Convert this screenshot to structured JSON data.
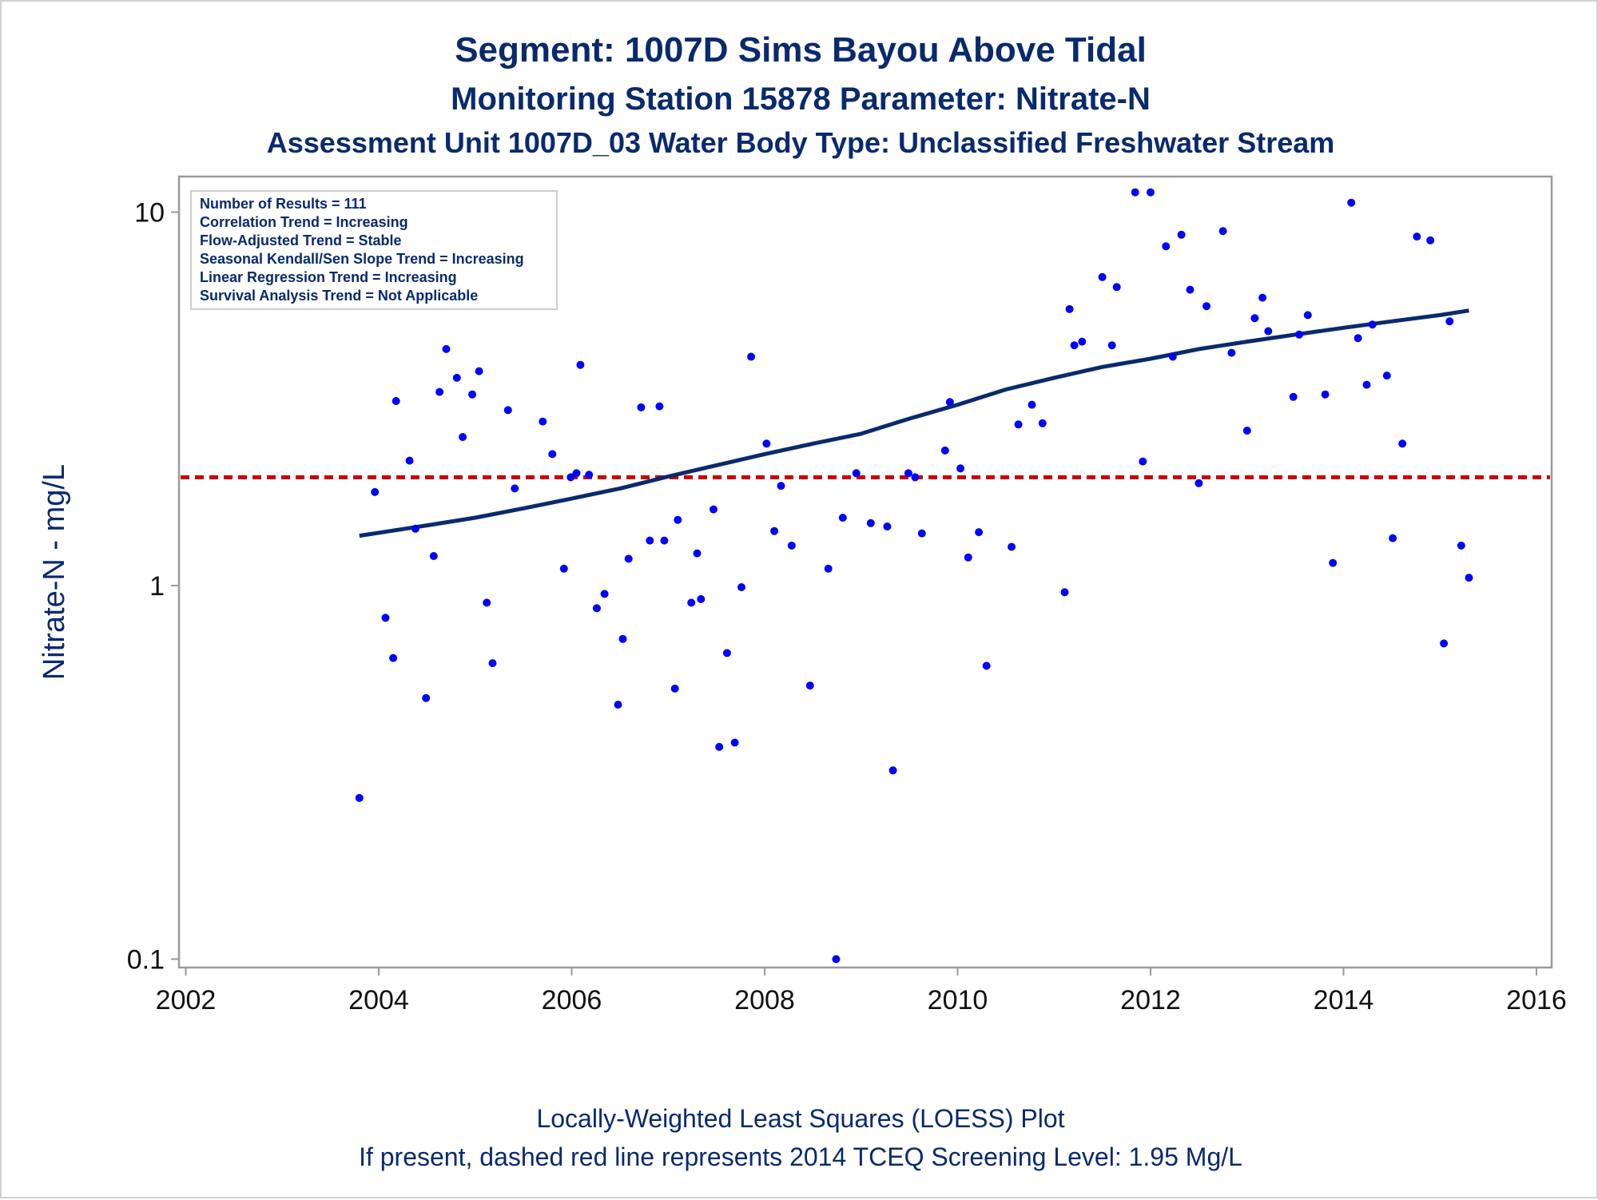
{
  "titles": {
    "line1": "Segment: 1007D  Sims Bayou Above Tidal",
    "line2": "Monitoring Station 15878 Parameter: Nitrate-N",
    "line3": "Assessment Unit 1007D_03   Water Body Type: Unclassified Freshwater Stream"
  },
  "footnotes": {
    "line1": "Locally-Weighted Least Squares (LOESS) Plot",
    "line2": "If present, dashed red line represents 2014 TCEQ Screening Level: 1.95 Mg/L"
  },
  "stats": [
    "Number of Results = 111",
    "Correlation Trend = Increasing",
    "Flow-Adjusted Trend = Stable",
    "Seasonal Kendall/Sen Slope Trend = Increasing",
    "Linear Regression Trend = Increasing",
    "Survival Analysis Trend = Not Applicable"
  ],
  "colors": {
    "points": "#0000ff",
    "loess": "#0a2a6e",
    "screening": "#cc0000",
    "text": "#0a2a6e",
    "axis": "#9a9a9a"
  },
  "chart_data": {
    "type": "scatter",
    "title": "Segment: 1007D  Sims Bayou Above Tidal",
    "xlabel": "",
    "ylabel": "Nitrate-N - mg/L",
    "yscale": "log",
    "xlim": [
      2002,
      2016
    ],
    "ylim": [
      0.1,
      12
    ],
    "xticks": [
      2002,
      2004,
      2006,
      2008,
      2010,
      2012,
      2014,
      2016
    ],
    "yticks": [
      0.1,
      1,
      10
    ],
    "ytick_labels": [
      "0.1",
      "1",
      "10"
    ],
    "grid": false,
    "screening_level": 1.95,
    "points": [
      [
        2003.8,
        0.27
      ],
      [
        2003.96,
        1.78
      ],
      [
        2004.07,
        0.82
      ],
      [
        2004.15,
        0.64
      ],
      [
        2004.18,
        3.12
      ],
      [
        2004.32,
        2.16
      ],
      [
        2004.38,
        1.42
      ],
      [
        2004.49,
        0.5
      ],
      [
        2004.57,
        1.2
      ],
      [
        2004.63,
        3.3
      ],
      [
        2004.7,
        4.3
      ],
      [
        2004.81,
        3.6
      ],
      [
        2004.87,
        2.5
      ],
      [
        2004.97,
        3.25
      ],
      [
        2005.04,
        3.75
      ],
      [
        2005.12,
        0.9
      ],
      [
        2005.18,
        0.62
      ],
      [
        2005.34,
        2.95
      ],
      [
        2005.41,
        1.82
      ],
      [
        2005.7,
        2.75
      ],
      [
        2005.8,
        2.25
      ],
      [
        2005.92,
        1.11
      ],
      [
        2005.99,
        1.95
      ],
      [
        2006.05,
        2.0
      ],
      [
        2006.09,
        3.9
      ],
      [
        2006.18,
        1.98
      ],
      [
        2006.26,
        0.87
      ],
      [
        2006.34,
        0.95
      ],
      [
        2006.48,
        0.48
      ],
      [
        2006.53,
        0.72
      ],
      [
        2006.59,
        1.18
      ],
      [
        2006.72,
        3.0
      ],
      [
        2006.81,
        1.32
      ],
      [
        2006.91,
        3.02
      ],
      [
        2006.96,
        1.32
      ],
      [
        2007.07,
        0.53
      ],
      [
        2007.1,
        1.5
      ],
      [
        2007.24,
        0.9
      ],
      [
        2007.3,
        1.22
      ],
      [
        2007.34,
        0.92
      ],
      [
        2007.47,
        1.6
      ],
      [
        2007.53,
        0.37
      ],
      [
        2007.61,
        0.66
      ],
      [
        2007.69,
        0.38
      ],
      [
        2007.76,
        0.99
      ],
      [
        2007.86,
        4.1
      ],
      [
        2008.02,
        2.4
      ],
      [
        2008.1,
        1.4
      ],
      [
        2008.17,
        1.85
      ],
      [
        2008.28,
        1.28
      ],
      [
        2008.47,
        0.54
      ],
      [
        2008.66,
        1.11
      ],
      [
        2008.74,
        0.1
      ],
      [
        2008.81,
        1.52
      ],
      [
        2008.95,
        2.0
      ],
      [
        2009.1,
        1.47
      ],
      [
        2009.27,
        1.44
      ],
      [
        2009.33,
        0.32
      ],
      [
        2009.49,
        2.0
      ],
      [
        2009.56,
        1.95
      ],
      [
        2009.63,
        1.38
      ],
      [
        2009.87,
        2.3
      ],
      [
        2009.92,
        3.1
      ],
      [
        2010.03,
        2.06
      ],
      [
        2010.11,
        1.19
      ],
      [
        2010.22,
        1.39
      ],
      [
        2010.3,
        0.61
      ],
      [
        2010.56,
        1.27
      ],
      [
        2010.63,
        2.7
      ],
      [
        2010.77,
        3.05
      ],
      [
        2010.88,
        2.72
      ],
      [
        2011.11,
        0.96
      ],
      [
        2011.16,
        5.5
      ],
      [
        2011.21,
        4.4
      ],
      [
        2011.29,
        4.5
      ],
      [
        2011.5,
        6.7
      ],
      [
        2011.6,
        4.4
      ],
      [
        2011.65,
        6.3
      ],
      [
        2011.84,
        11.3
      ],
      [
        2011.92,
        2.15
      ],
      [
        2012.0,
        11.3
      ],
      [
        2012.16,
        8.1
      ],
      [
        2012.23,
        4.1
      ],
      [
        2012.32,
        8.7
      ],
      [
        2012.41,
        6.2
      ],
      [
        2012.5,
        1.88
      ],
      [
        2012.58,
        5.6
      ],
      [
        2012.75,
        8.9
      ],
      [
        2012.84,
        4.2
      ],
      [
        2013.0,
        2.6
      ],
      [
        2013.08,
        5.2
      ],
      [
        2013.16,
        5.9
      ],
      [
        2013.22,
        4.8
      ],
      [
        2013.48,
        3.2
      ],
      [
        2013.54,
        4.7
      ],
      [
        2013.63,
        5.3
      ],
      [
        2013.81,
        3.25
      ],
      [
        2013.89,
        1.15
      ],
      [
        2014.08,
        10.6
      ],
      [
        2014.15,
        4.6
      ],
      [
        2014.24,
        3.45
      ],
      [
        2014.3,
        5.0
      ],
      [
        2014.45,
        3.65
      ],
      [
        2014.51,
        1.34
      ],
      [
        2014.61,
        2.4
      ],
      [
        2014.76,
        8.6
      ],
      [
        2014.9,
        8.4
      ],
      [
        2015.04,
        0.7
      ],
      [
        2015.1,
        5.1
      ],
      [
        2015.22,
        1.28
      ],
      [
        2015.3,
        1.05
      ]
    ],
    "series": [
      {
        "type": "line",
        "x": [
          2003.8,
          2004.5,
          2005.0,
          2005.5,
          2006.0,
          2006.5,
          2007.0,
          2007.5,
          2008.0,
          2008.5,
          2009.0,
          2009.5,
          2010.0,
          2010.5,
          2011.0,
          2011.5,
          2012.0,
          2012.5,
          2013.0,
          2013.5,
          2014.0,
          2014.5,
          2015.0,
          2015.3
        ],
        "values": [
          1.36,
          1.45,
          1.52,
          1.61,
          1.71,
          1.82,
          1.96,
          2.1,
          2.25,
          2.4,
          2.55,
          2.8,
          3.05,
          3.35,
          3.6,
          3.85,
          4.05,
          4.3,
          4.5,
          4.7,
          4.9,
          5.1,
          5.3,
          5.45
        ]
      }
    ]
  }
}
